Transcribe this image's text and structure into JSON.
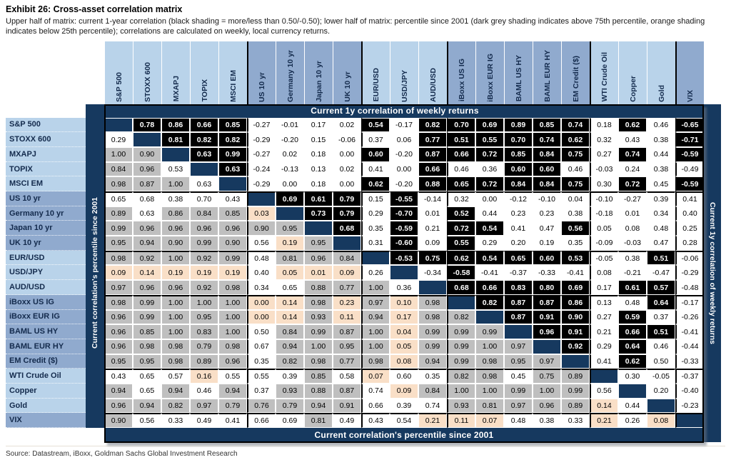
{
  "exhibit": {
    "title": "Exhibit 26: Cross-asset correlation matrix",
    "subtitle": "Upper half of matrix: current 1-year correlation (black shading = more/less than 0.50/-0.50); lower half of matrix: percentile since 2001 (dark grey shading indicates above 75th percentile, orange shading indicates below 25th percentile); correlations are calculated on weekly, local currency returns.",
    "source": "Source: Datastream, iBoxx, Goldman Sachs Global Investment Research"
  },
  "bands": {
    "top": "Current 1y correlation of weekly returns",
    "bottom": "Current correlation's percentile since 2001",
    "left": "Current correlation's percentile since 2001",
    "right": "Current 1y correlation of weekly returns"
  },
  "colors": {
    "navy": "#16395f",
    "light_blue_label": "#b9d3ea",
    "medium_blue_label": "#90aace",
    "black_cell": "#000000",
    "grey_cell": "#bfbfbf",
    "orange_cell": "#f9dfc7",
    "label_text": "#142b4d",
    "band_text": "#ffffff"
  },
  "chart_data": {
    "type": "heatmap",
    "title": "Cross-asset correlation matrix",
    "upper_triangle_meaning": "Current 1y correlation of weekly returns",
    "lower_triangle_meaning": "Current correlation's percentile since 2001",
    "shading_rules": {
      "upper_black": "abs(correlation) > 0.50",
      "lower_grey": "percentile >= 0.75",
      "lower_orange": "percentile < 0.25"
    },
    "col_labels": [
      "S&P 500",
      "STOXX 600",
      "MXAPJ",
      "TOPIX",
      "MSCI EM",
      "US 10 yr",
      "Germany 10 yr",
      "Japan 10 yr",
      "UK 10 yr",
      "EUR/USD",
      "USD/JPY",
      "AUD/USD",
      "iBoxx US IG",
      "iBoxx EUR IG",
      "BAML US HY",
      "BAML EUR HY",
      "EM Credit ($)",
      "WTI Crude Oil",
      "Copper",
      "Gold",
      "VIX"
    ],
    "row_labels": [
      "S&P 500",
      "STOXX 600",
      "MXAPJ",
      "TOPIX",
      "MSCI EM",
      "US 10 yr",
      "Germany 10 yr",
      "Japan 10 yr",
      "UK 10 yr",
      "EUR/USD",
      "USD/JPY",
      "AUD/USD",
      "iBoxx US IG",
      "iBoxx EUR IG",
      "BAML US HY",
      "BAML EUR HY",
      "EM Credit ($)",
      "WTI Crude Oil",
      "Copper",
      "Gold",
      "VIX"
    ],
    "group_shade": [
      "light",
      "light",
      "light",
      "light",
      "light",
      "medium",
      "medium",
      "medium",
      "medium",
      "light",
      "light",
      "light",
      "medium",
      "medium",
      "medium",
      "medium",
      "medium",
      "light",
      "light",
      "light",
      "medium"
    ],
    "group_starts": [
      5,
      9,
      12,
      17,
      20
    ],
    "matrix": [
      [
        null,
        0.78,
        0.86,
        0.66,
        0.85,
        -0.27,
        -0.01,
        0.17,
        0.02,
        0.54,
        -0.17,
        0.82,
        0.7,
        0.69,
        0.89,
        0.85,
        0.74,
        0.18,
        0.62,
        0.46,
        -0.65
      ],
      [
        0.29,
        null,
        0.81,
        0.82,
        0.82,
        -0.29,
        -0.2,
        0.15,
        -0.06,
        0.37,
        0.06,
        0.77,
        0.51,
        0.55,
        0.7,
        0.74,
        0.62,
        0.32,
        0.43,
        0.38,
        -0.71
      ],
      [
        1.0,
        0.9,
        null,
        0.63,
        0.99,
        -0.27,
        0.02,
        0.18,
        0.0,
        0.6,
        -0.2,
        0.87,
        0.66,
        0.72,
        0.85,
        0.84,
        0.75,
        0.27,
        0.74,
        0.44,
        -0.59
      ],
      [
        0.84,
        0.96,
        0.53,
        null,
        0.63,
        -0.24,
        -0.13,
        0.13,
        0.02,
        0.41,
        0.0,
        0.66,
        0.46,
        0.36,
        0.6,
        0.6,
        0.46,
        -0.03,
        0.24,
        0.38,
        -0.49
      ],
      [
        0.98,
        0.87,
        1.0,
        0.63,
        null,
        -0.29,
        0.0,
        0.18,
        0.0,
        0.62,
        -0.2,
        0.88,
        0.65,
        0.72,
        0.84,
        0.84,
        0.75,
        0.3,
        0.72,
        0.45,
        -0.59
      ],
      [
        0.65,
        0.68,
        0.38,
        0.7,
        0.43,
        null,
        0.69,
        0.61,
        0.79,
        0.15,
        -0.55,
        -0.14,
        0.32,
        0.0,
        -0.12,
        -0.1,
        0.04,
        -0.1,
        -0.27,
        0.39,
        0.41
      ],
      [
        0.89,
        0.63,
        0.86,
        0.84,
        0.85,
        0.03,
        null,
        0.73,
        0.79,
        0.29,
        -0.7,
        0.01,
        0.52,
        0.44,
        0.23,
        0.23,
        0.38,
        -0.18,
        0.01,
        0.34,
        0.4
      ],
      [
        0.99,
        0.96,
        0.96,
        0.96,
        0.96,
        0.9,
        0.95,
        null,
        0.68,
        0.35,
        -0.59,
        0.21,
        0.72,
        0.54,
        0.41,
        0.47,
        0.56,
        0.05,
        0.08,
        0.48,
        0.25
      ],
      [
        0.95,
        0.94,
        0.9,
        0.99,
        0.9,
        0.56,
        0.19,
        0.95,
        null,
        0.31,
        -0.6,
        0.09,
        0.55,
        0.29,
        0.2,
        0.19,
        0.35,
        -0.09,
        -0.03,
        0.47,
        0.28
      ],
      [
        0.98,
        0.92,
        1.0,
        0.92,
        0.99,
        0.48,
        0.81,
        0.96,
        0.84,
        null,
        -0.53,
        0.75,
        0.62,
        0.54,
        0.65,
        0.6,
        0.53,
        -0.05,
        0.38,
        0.51,
        -0.06
      ],
      [
        0.09,
        0.14,
        0.19,
        0.19,
        0.19,
        0.4,
        0.05,
        0.01,
        0.09,
        0.26,
        null,
        -0.34,
        -0.58,
        -0.41,
        -0.37,
        -0.33,
        -0.41,
        0.08,
        -0.21,
        -0.47,
        -0.29
      ],
      [
        0.97,
        0.96,
        0.96,
        0.92,
        0.98,
        0.34,
        0.65,
        0.88,
        0.77,
        1.0,
        0.36,
        null,
        0.68,
        0.66,
        0.83,
        0.8,
        0.69,
        0.17,
        0.61,
        0.57,
        -0.48
      ],
      [
        0.98,
        0.99,
        1.0,
        1.0,
        1.0,
        0.0,
        0.14,
        0.98,
        0.23,
        0.97,
        0.1,
        0.98,
        null,
        0.82,
        0.87,
        0.87,
        0.86,
        0.13,
        0.48,
        0.64,
        -0.17
      ],
      [
        0.96,
        0.99,
        1.0,
        0.95,
        1.0,
        0.0,
        0.14,
        0.93,
        0.11,
        0.94,
        0.17,
        0.98,
        0.82,
        null,
        0.87,
        0.91,
        0.9,
        0.27,
        0.59,
        0.37,
        -0.26
      ],
      [
        0.96,
        0.85,
        1.0,
        0.83,
        1.0,
        0.5,
        0.84,
        0.99,
        0.87,
        1.0,
        0.04,
        0.99,
        0.99,
        0.99,
        null,
        0.96,
        0.91,
        0.21,
        0.66,
        0.51,
        -0.41
      ],
      [
        0.96,
        0.98,
        0.98,
        0.79,
        0.98,
        0.67,
        0.94,
        1.0,
        0.95,
        1.0,
        0.05,
        0.99,
        0.99,
        1.0,
        0.97,
        null,
        0.92,
        0.29,
        0.64,
        0.46,
        -0.44
      ],
      [
        0.95,
        0.95,
        0.98,
        0.89,
        0.96,
        0.35,
        0.82,
        0.98,
        0.77,
        0.98,
        0.08,
        0.94,
        0.99,
        0.98,
        0.95,
        0.97,
        null,
        0.41,
        0.62,
        0.5,
        -0.33
      ],
      [
        0.43,
        0.65,
        0.57,
        0.16,
        0.55,
        0.55,
        0.39,
        0.85,
        0.58,
        0.07,
        0.6,
        0.35,
        0.82,
        0.98,
        0.45,
        0.75,
        0.89,
        null,
        0.3,
        -0.05,
        -0.37
      ],
      [
        0.94,
        0.65,
        0.94,
        0.46,
        0.94,
        0.37,
        0.93,
        0.88,
        0.87,
        0.74,
        0.09,
        0.84,
        1.0,
        1.0,
        0.99,
        1.0,
        0.99,
        0.56,
        null,
        0.2,
        -0.4
      ],
      [
        0.96,
        0.94,
        0.82,
        0.97,
        0.79,
        0.76,
        0.79,
        0.94,
        0.91,
        0.66,
        0.39,
        0.74,
        0.93,
        0.81,
        0.97,
        0.96,
        0.89,
        0.14,
        0.44,
        null,
        -0.23
      ],
      [
        0.9,
        0.56,
        0.33,
        0.49,
        0.41,
        0.66,
        0.69,
        0.81,
        0.49,
        0.43,
        0.54,
        0.21,
        0.11,
        0.07,
        0.48,
        0.38,
        0.33,
        0.21,
        0.26,
        0.08,
        null
      ]
    ]
  }
}
